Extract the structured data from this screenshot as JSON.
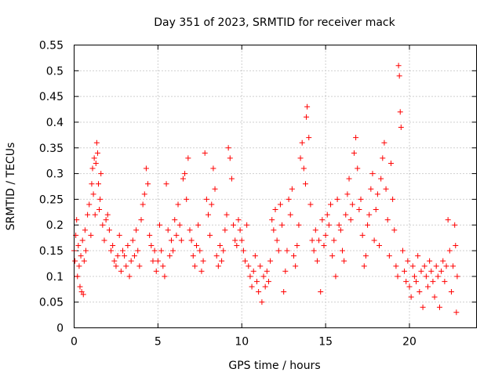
{
  "chart_data": {
    "type": "scatter",
    "title": "Day 351 of 2023, SRMTID for receiver mack",
    "xlabel": "GPS time / hours",
    "ylabel": "SRMTID / TECUs",
    "xlim": [
      0,
      24
    ],
    "ylim": [
      0,
      0.55
    ],
    "xticks": [
      0,
      5,
      10,
      15,
      20
    ],
    "xtick_labels": [
      "0",
      "5",
      "10",
      "15",
      "20"
    ],
    "yticks": [
      0,
      0.05,
      0.1,
      0.15,
      0.2,
      0.25,
      0.3,
      0.35,
      0.4,
      0.45,
      0.5,
      0.55
    ],
    "ytick_labels": [
      "0",
      "0.05",
      "0.1",
      "0.15",
      "0.2",
      "0.25",
      "0.3",
      "0.35",
      "0.4",
      "0.45",
      "0.5",
      "0.55"
    ],
    "grid": true,
    "marker": "+",
    "color": "#ff0000",
    "series": [
      {
        "name": "SRMTID",
        "points": [
          [
            0.0,
            0.15
          ],
          [
            0.05,
            0.13
          ],
          [
            0.1,
            0.18
          ],
          [
            0.15,
            0.21
          ],
          [
            0.2,
            0.1
          ],
          [
            0.25,
            0.16
          ],
          [
            0.3,
            0.12
          ],
          [
            0.35,
            0.08
          ],
          [
            0.4,
            0.14
          ],
          [
            0.45,
            0.07
          ],
          [
            0.5,
            0.17
          ],
          [
            0.55,
            0.065
          ],
          [
            0.6,
            0.13
          ],
          [
            0.65,
            0.19
          ],
          [
            0.7,
            0.15
          ],
          [
            0.8,
            0.22
          ],
          [
            0.9,
            0.24
          ],
          [
            1.0,
            0.18
          ],
          [
            1.05,
            0.28
          ],
          [
            1.1,
            0.31
          ],
          [
            1.15,
            0.26
          ],
          [
            1.2,
            0.33
          ],
          [
            1.25,
            0.22
          ],
          [
            1.3,
            0.32
          ],
          [
            1.35,
            0.36
          ],
          [
            1.4,
            0.34
          ],
          [
            1.45,
            0.28
          ],
          [
            1.5,
            0.23
          ],
          [
            1.55,
            0.25
          ],
          [
            1.6,
            0.3
          ],
          [
            1.7,
            0.2
          ],
          [
            1.8,
            0.17
          ],
          [
            1.9,
            0.21
          ],
          [
            2.0,
            0.22
          ],
          [
            2.1,
            0.19
          ],
          [
            2.2,
            0.15
          ],
          [
            2.3,
            0.16
          ],
          [
            2.4,
            0.13
          ],
          [
            2.5,
            0.12
          ],
          [
            2.6,
            0.14
          ],
          [
            2.7,
            0.18
          ],
          [
            2.8,
            0.11
          ],
          [
            2.9,
            0.15
          ],
          [
            3.0,
            0.14
          ],
          [
            3.1,
            0.12
          ],
          [
            3.2,
            0.16
          ],
          [
            3.3,
            0.1
          ],
          [
            3.4,
            0.13
          ],
          [
            3.5,
            0.17
          ],
          [
            3.6,
            0.14
          ],
          [
            3.7,
            0.19
          ],
          [
            3.8,
            0.15
          ],
          [
            3.9,
            0.12
          ],
          [
            4.0,
            0.21
          ],
          [
            4.1,
            0.24
          ],
          [
            4.2,
            0.26
          ],
          [
            4.3,
            0.31
          ],
          [
            4.4,
            0.28
          ],
          [
            4.5,
            0.18
          ],
          [
            4.6,
            0.16
          ],
          [
            4.7,
            0.13
          ],
          [
            4.8,
            0.15
          ],
          [
            4.9,
            0.11
          ],
          [
            5.0,
            0.13
          ],
          [
            5.1,
            0.2
          ],
          [
            5.2,
            0.15
          ],
          [
            5.3,
            0.12
          ],
          [
            5.4,
            0.1
          ],
          [
            5.5,
            0.28
          ],
          [
            5.6,
            0.19
          ],
          [
            5.7,
            0.14
          ],
          [
            5.8,
            0.17
          ],
          [
            5.9,
            0.15
          ],
          [
            6.0,
            0.21
          ],
          [
            6.1,
            0.18
          ],
          [
            6.2,
            0.24
          ],
          [
            6.3,
            0.2
          ],
          [
            6.4,
            0.17
          ],
          [
            6.5,
            0.29
          ],
          [
            6.6,
            0.3
          ],
          [
            6.7,
            0.25
          ],
          [
            6.8,
            0.33
          ],
          [
            6.9,
            0.19
          ],
          [
            7.0,
            0.17
          ],
          [
            7.1,
            0.14
          ],
          [
            7.2,
            0.12
          ],
          [
            7.3,
            0.16
          ],
          [
            7.4,
            0.2
          ],
          [
            7.5,
            0.15
          ],
          [
            7.6,
            0.11
          ],
          [
            7.7,
            0.13
          ],
          [
            7.8,
            0.34
          ],
          [
            7.9,
            0.25
          ],
          [
            8.0,
            0.22
          ],
          [
            8.1,
            0.18
          ],
          [
            8.2,
            0.24
          ],
          [
            8.3,
            0.31
          ],
          [
            8.4,
            0.27
          ],
          [
            8.5,
            0.14
          ],
          [
            8.6,
            0.12
          ],
          [
            8.7,
            0.16
          ],
          [
            8.8,
            0.13
          ],
          [
            8.9,
            0.15
          ],
          [
            9.0,
            0.19
          ],
          [
            9.1,
            0.22
          ],
          [
            9.2,
            0.35
          ],
          [
            9.3,
            0.33
          ],
          [
            9.4,
            0.29
          ],
          [
            9.5,
            0.2
          ],
          [
            9.6,
            0.17
          ],
          [
            9.7,
            0.16
          ],
          [
            9.8,
            0.21
          ],
          [
            9.9,
            0.19
          ],
          [
            10.0,
            0.17
          ],
          [
            10.1,
            0.15
          ],
          [
            10.2,
            0.13
          ],
          [
            10.3,
            0.2
          ],
          [
            10.4,
            0.12
          ],
          [
            10.5,
            0.1
          ],
          [
            10.6,
            0.08
          ],
          [
            10.7,
            0.11
          ],
          [
            10.8,
            0.14
          ],
          [
            10.9,
            0.09
          ],
          [
            11.0,
            0.07
          ],
          [
            11.1,
            0.12
          ],
          [
            11.2,
            0.05
          ],
          [
            11.3,
            0.1
          ],
          [
            11.4,
            0.08
          ],
          [
            11.5,
            0.11
          ],
          [
            11.6,
            0.09
          ],
          [
            11.7,
            0.13
          ],
          [
            11.8,
            0.21
          ],
          [
            11.9,
            0.19
          ],
          [
            12.0,
            0.23
          ],
          [
            12.1,
            0.17
          ],
          [
            12.2,
            0.15
          ],
          [
            12.3,
            0.24
          ],
          [
            12.4,
            0.2
          ],
          [
            12.5,
            0.07
          ],
          [
            12.6,
            0.11
          ],
          [
            12.7,
            0.15
          ],
          [
            12.8,
            0.25
          ],
          [
            12.9,
            0.22
          ],
          [
            13.0,
            0.27
          ],
          [
            13.1,
            0.14
          ],
          [
            13.2,
            0.12
          ],
          [
            13.3,
            0.16
          ],
          [
            13.4,
            0.2
          ],
          [
            13.5,
            0.33
          ],
          [
            13.6,
            0.36
          ],
          [
            13.7,
            0.31
          ],
          [
            13.8,
            0.28
          ],
          [
            13.85,
            0.41
          ],
          [
            13.9,
            0.43
          ],
          [
            14.0,
            0.37
          ],
          [
            14.1,
            0.24
          ],
          [
            14.2,
            0.17
          ],
          [
            14.3,
            0.15
          ],
          [
            14.4,
            0.19
          ],
          [
            14.5,
            0.13
          ],
          [
            14.6,
            0.17
          ],
          [
            14.7,
            0.07
          ],
          [
            14.8,
            0.21
          ],
          [
            14.9,
            0.16
          ],
          [
            15.0,
            0.18
          ],
          [
            15.1,
            0.22
          ],
          [
            15.2,
            0.2
          ],
          [
            15.3,
            0.24
          ],
          [
            15.4,
            0.14
          ],
          [
            15.5,
            0.17
          ],
          [
            15.6,
            0.1
          ],
          [
            15.7,
            0.25
          ],
          [
            15.8,
            0.2
          ],
          [
            15.9,
            0.19
          ],
          [
            16.0,
            0.15
          ],
          [
            16.1,
            0.13
          ],
          [
            16.2,
            0.22
          ],
          [
            16.3,
            0.26
          ],
          [
            16.4,
            0.29
          ],
          [
            16.5,
            0.21
          ],
          [
            16.6,
            0.24
          ],
          [
            16.7,
            0.34
          ],
          [
            16.8,
            0.37
          ],
          [
            16.9,
            0.31
          ],
          [
            17.0,
            0.23
          ],
          [
            17.1,
            0.25
          ],
          [
            17.2,
            0.18
          ],
          [
            17.3,
            0.12
          ],
          [
            17.4,
            0.14
          ],
          [
            17.5,
            0.2
          ],
          [
            17.6,
            0.22
          ],
          [
            17.7,
            0.27
          ],
          [
            17.8,
            0.3
          ],
          [
            17.9,
            0.17
          ],
          [
            18.0,
            0.23
          ],
          [
            18.1,
            0.26
          ],
          [
            18.2,
            0.16
          ],
          [
            18.3,
            0.29
          ],
          [
            18.4,
            0.33
          ],
          [
            18.5,
            0.36
          ],
          [
            18.6,
            0.27
          ],
          [
            18.7,
            0.21
          ],
          [
            18.8,
            0.14
          ],
          [
            18.9,
            0.32
          ],
          [
            19.0,
            0.25
          ],
          [
            19.1,
            0.19
          ],
          [
            19.2,
            0.12
          ],
          [
            19.3,
            0.1
          ],
          [
            19.35,
            0.51
          ],
          [
            19.4,
            0.49
          ],
          [
            19.45,
            0.42
          ],
          [
            19.5,
            0.39
          ],
          [
            19.6,
            0.15
          ],
          [
            19.7,
            0.11
          ],
          [
            19.8,
            0.09
          ],
          [
            19.9,
            0.13
          ],
          [
            20.0,
            0.08
          ],
          [
            20.1,
            0.06
          ],
          [
            20.2,
            0.12
          ],
          [
            20.3,
            0.1
          ],
          [
            20.4,
            0.09
          ],
          [
            20.5,
            0.14
          ],
          [
            20.6,
            0.07
          ],
          [
            20.7,
            0.11
          ],
          [
            20.8,
            0.04
          ],
          [
            20.9,
            0.12
          ],
          [
            21.0,
            0.1
          ],
          [
            21.1,
            0.08
          ],
          [
            21.2,
            0.13
          ],
          [
            21.3,
            0.11
          ],
          [
            21.4,
            0.09
          ],
          [
            21.5,
            0.06
          ],
          [
            21.6,
            0.12
          ],
          [
            21.7,
            0.1
          ],
          [
            21.8,
            0.04
          ],
          [
            21.9,
            0.11
          ],
          [
            22.0,
            0.13
          ],
          [
            22.1,
            0.09
          ],
          [
            22.2,
            0.12
          ],
          [
            22.3,
            0.21
          ],
          [
            22.4,
            0.15
          ],
          [
            22.5,
            0.07
          ],
          [
            22.6,
            0.12
          ],
          [
            22.7,
            0.2
          ],
          [
            22.75,
            0.16
          ],
          [
            22.8,
            0.03
          ],
          [
            22.85,
            0.1
          ]
        ]
      }
    ]
  }
}
